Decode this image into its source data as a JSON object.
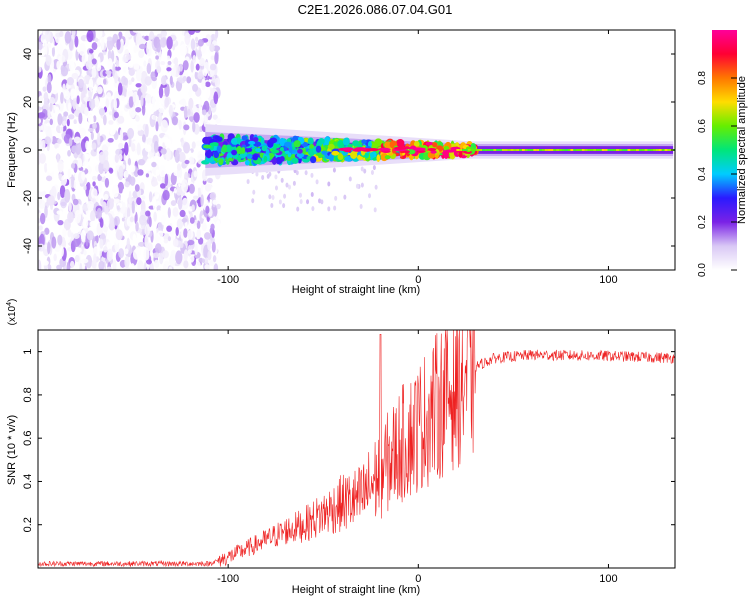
{
  "title": "C2E1.2026.086.07.04.G01",
  "chart_data": [
    {
      "type": "heatmap",
      "name": "spectrogram",
      "xlabel": "Height of straight line (km)",
      "ylabel": "Frequency (Hz)",
      "xlim": [
        -200,
        135
      ],
      "ylim": [
        -50,
        50
      ],
      "xticks": [
        -100,
        0,
        100
      ],
      "yticks": [
        -40,
        -20,
        0,
        20,
        40
      ],
      "noise_region_x": [
        -200,
        -105
      ],
      "signal_band": {
        "x_start": -112,
        "center_hz": 0,
        "halfwidth_start_hz": 6,
        "halfwidth_end_hz": 2
      },
      "colorbar": {
        "label": "Normalized spectral amplitude",
        "range": [
          0.0,
          1.0
        ],
        "ticks": [
          0.0,
          0.2,
          0.4,
          0.6,
          0.8
        ],
        "colors": [
          "#ffffff",
          "#d9c8f5",
          "#7a22e6",
          "#2a1aff",
          "#00ccff",
          "#00e67a",
          "#66ee00",
          "#ffdd00",
          "#ff7700",
          "#ff0033",
          "#ff0099"
        ]
      }
    },
    {
      "type": "line",
      "name": "snr",
      "xlabel": "Height of straight line (km)",
      "ylabel": "SNR (10 * v/v)",
      "multiplier_label": "(x10",
      "multiplier_exp": "4",
      "multiplier_close": ")",
      "xlim": [
        -200,
        135
      ],
      "ylim": [
        0,
        1.1
      ],
      "xticks": [
        -100,
        0,
        100
      ],
      "yticks": [
        0.2,
        0.4,
        0.6,
        0.8,
        1
      ],
      "color": "#ee2222",
      "profile": {
        "x": [
          -200,
          -110,
          -100,
          -90,
          -80,
          -70,
          -60,
          -50,
          -40,
          -30,
          -25,
          -20,
          -15,
          -10,
          0,
          10,
          20,
          30,
          40,
          60,
          100,
          135
        ],
        "y": [
          0.02,
          0.02,
          0.05,
          0.09,
          0.13,
          0.17,
          0.2,
          0.25,
          0.3,
          0.32,
          0.38,
          0.44,
          0.5,
          0.56,
          0.65,
          0.75,
          0.85,
          0.93,
          0.97,
          0.985,
          0.98,
          0.97
        ]
      },
      "peak": {
        "x": -20,
        "y": 1.08
      }
    }
  ]
}
